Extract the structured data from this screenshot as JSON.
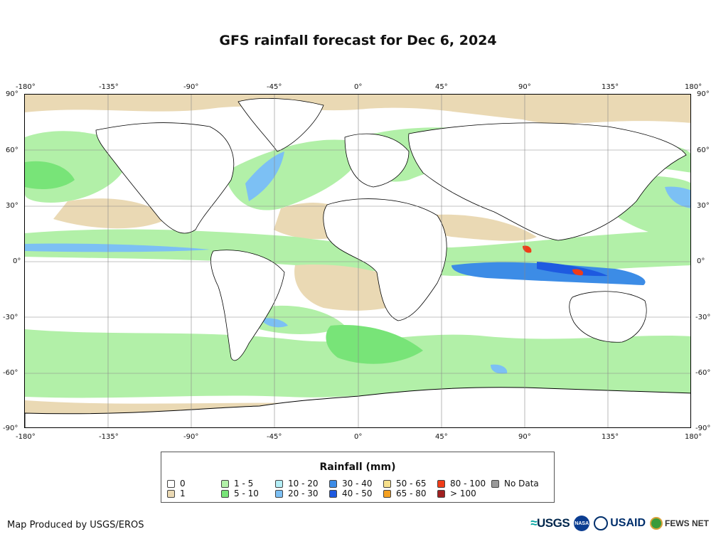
{
  "title": "GFS rainfall forecast for Dec 6, 2024",
  "lon_ticks": [
    "-180°",
    "-135°",
    "-90°",
    "-45°",
    "0°",
    "45°",
    "90°",
    "135°",
    "180°"
  ],
  "lat_ticks": [
    "90°",
    "60°",
    "30°",
    "0°",
    "-30°",
    "-60°",
    "-90°"
  ],
  "legend": {
    "title": "Rainfall (mm)",
    "items": [
      {
        "label": "0",
        "color": "#ffffff"
      },
      {
        "label": "1",
        "color": "#ead9b4"
      },
      {
        "label": "1 - 5",
        "color": "#b2f0a8"
      },
      {
        "label": "5 - 10",
        "color": "#78e478"
      },
      {
        "label": "10 - 20",
        "color": "#b4eef6"
      },
      {
        "label": "20 - 30",
        "color": "#7cc0f4"
      },
      {
        "label": "30 - 40",
        "color": "#3c8ce6"
      },
      {
        "label": "40 - 50",
        "color": "#1e5ae0"
      },
      {
        "label": "50 - 65",
        "color": "#f6e08c"
      },
      {
        "label": "65 - 80",
        "color": "#f4a020"
      },
      {
        "label": "80 - 100",
        "color": "#f03c18"
      },
      {
        "label": "> 100",
        "color": "#a02020"
      },
      {
        "label": "No Data",
        "color": "#999999"
      }
    ]
  },
  "credit": "Map Produced by USGS/EROS",
  "logos": {
    "usgs": "USGS",
    "nasa": "NASA",
    "usaid": "USAID",
    "fews": "FEWS NET"
  }
}
